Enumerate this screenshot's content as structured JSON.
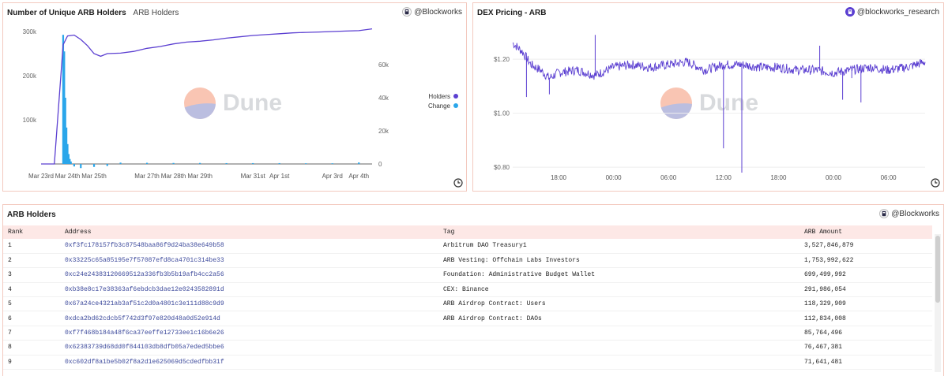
{
  "holders_panel": {
    "title": "Number of Unique ARB Holders",
    "subtitle": "ARB Holders",
    "credit": "@Blockworks",
    "left_ticks": [
      "300k",
      "200k",
      "100k"
    ],
    "right_ticks": [
      "60k",
      "40k",
      "20k",
      "0"
    ],
    "x_ticks": [
      "Mar 23rd",
      "Mar 24th",
      "Mar 25th",
      "Mar 27th",
      "Mar 28th",
      "Mar 29th",
      "Mar 31st",
      "Apr 1st",
      "Apr 3rd",
      "Apr 4th"
    ],
    "legend": [
      {
        "label": "Holders",
        "color": "#5b3fd1"
      },
      {
        "label": "Change",
        "color": "#2aa6ea"
      }
    ]
  },
  "dex_panel": {
    "title": "DEX Pricing - ARB",
    "credit": "@blockworks_research",
    "y_ticks": [
      "$1.20",
      "$1.00",
      "$0.80"
    ],
    "x_ticks": [
      "18:00",
      "00:00",
      "06:00",
      "12:00",
      "18:00",
      "00:00",
      "06:00"
    ],
    "line_color": "#5b3fd1"
  },
  "watermark": "Dune",
  "chart_data": [
    {
      "type": "line",
      "title": "Number of Unique ARB Holders",
      "series": [
        {
          "name": "Holders",
          "axis": "left",
          "x": [
            "Mar 23 00:00",
            "Mar 23 12:00",
            "Mar 23 20:00",
            "Mar 24 00:00",
            "Mar 24 06:00",
            "Mar 24 12:00",
            "Mar 24 18:00",
            "Mar 25 00:00",
            "Mar 25 06:00",
            "Mar 25 12:00",
            "Mar 26 00:00",
            "Mar 26 12:00",
            "Mar 27 00:00",
            "Mar 27 12:00",
            "Mar 28 00:00",
            "Mar 28 12:00",
            "Mar 29 00:00",
            "Mar 29 12:00",
            "Mar 30 00:00",
            "Mar 30 12:00",
            "Mar 31 00:00",
            "Mar 31 12:00",
            "Apr 1 00:00",
            "Apr 1 12:00",
            "Apr 2 00:00",
            "Apr 2 12:00",
            "Apr 3 00:00",
            "Apr 3 12:00",
            "Apr 4 00:00",
            "Apr 4 12:00"
          ],
          "values": [
            0,
            0,
            270000,
            290000,
            292000,
            282000,
            268000,
            250000,
            244000,
            250000,
            251000,
            255000,
            262000,
            266000,
            272000,
            276000,
            278000,
            281000,
            285000,
            288000,
            291000,
            293000,
            295000,
            297000,
            298000,
            299000,
            300000,
            301000,
            302000,
            306000
          ]
        },
        {
          "name": "Change",
          "axis": "right",
          "type": "bar",
          "x": [
            "Mar 23 20:00",
            "Mar 23 21:00",
            "Mar 23 22:00",
            "Mar 23 23:00",
            "Mar 24 00:00",
            "Mar 24 01:00",
            "Mar 24 02:00",
            "Mar 24 03:00",
            "Mar 24 06:00",
            "Mar 24 12:00",
            "Mar 25 00:00",
            "Mar 25 12:00",
            "Mar 26 00:00",
            "Mar 27 00:00",
            "Mar 28 00:00",
            "Mar 29 00:00",
            "Mar 30 00:00",
            "Mar 31 00:00",
            "Apr 1 00:00",
            "Apr 2 00:00",
            "Apr 3 00:00",
            "Apr 4 00:00"
          ],
          "values": [
            78000,
            68000,
            40000,
            22000,
            12000,
            6000,
            3000,
            1500,
            -1500,
            -2500,
            -1800,
            -1200,
            800,
            700,
            600,
            600,
            500,
            500,
            500,
            400,
            400,
            900
          ]
        }
      ],
      "ylim_left": [
        0,
        300000
      ],
      "ylim_right": [
        0,
        80000
      ]
    },
    {
      "type": "line",
      "title": "DEX Pricing - ARB",
      "x": [
        "Mar 23 13:00",
        "Mar 23 14:00",
        "Mar 23 15:00",
        "Mar 23 16:00",
        "Mar 23 17:00",
        "Mar 23 18:00",
        "Mar 23 20:00",
        "Mar 23 22:00",
        "Mar 24 00:00",
        "Mar 24 02:00",
        "Mar 24 04:00",
        "Mar 24 06:00",
        "Mar 24 08:00",
        "Mar 24 10:00",
        "Mar 24 12:00",
        "Mar 24 14:00",
        "Mar 24 16:00",
        "Mar 24 18:00",
        "Mar 24 20:00",
        "Mar 24 22:00",
        "Mar 25 00:00",
        "Mar 25 02:00",
        "Mar 25 04:00",
        "Mar 25 06:00",
        "Mar 25 08:00",
        "Mar 25 10:00"
      ],
      "values": [
        1.26,
        1.23,
        1.18,
        1.16,
        1.13,
        1.15,
        1.16,
        1.14,
        1.17,
        1.18,
        1.17,
        1.18,
        1.19,
        1.16,
        1.18,
        1.18,
        1.17,
        1.17,
        1.16,
        1.16,
        1.15,
        1.16,
        1.17,
        1.16,
        1.17,
        1.19
      ],
      "ylim": [
        0.78,
        1.32
      ]
    }
  ],
  "table_panel": {
    "title": "ARB Holders",
    "credit": "@Blockworks",
    "columns": [
      "Rank",
      "Address",
      "Tag",
      "ARB Amount"
    ],
    "rows": [
      [
        "1",
        "0xf3fc178157fb3c87548baa86f9d24ba38e649b58",
        "Arbitrum DAO Treasury1",
        "3,527,846,879"
      ],
      [
        "2",
        "0x33225c65a85195e7f57087efd8ca4701c314be33",
        "ARB Vesting: Offchain Labs Investors",
        "1,753,992,622"
      ],
      [
        "3",
        "0xc24e24383120669512a336fb3b5b19afb4cc2a56",
        "Foundation: Administrative Budget Wallet",
        "699,499,992"
      ],
      [
        "4",
        "0xb38e8c17e38363af6ebdcb3dae12e0243582891d",
        "CEX: Binance",
        "291,986,054"
      ],
      [
        "5",
        "0x67a24ce4321ab3af51c2d0a4801c3e111d88c9d9",
        "ARB Airdrop Contract: Users",
        "118,329,909"
      ],
      [
        "6",
        "0xdca2bd62cdcb5f742d3f97e820d48a0d52e914d",
        "ARB Airdrop Contract: DAOs",
        "112,834,008"
      ],
      [
        "7",
        "0xf7f468b184a48f6ca37eeffe12733ee1c16b6e26",
        "",
        "85,764,496"
      ],
      [
        "8",
        "0x62383739d68dd0f844103db8dfb05a7eded5bbe6",
        "",
        "76,467,381"
      ],
      [
        "9",
        "0xc602df8a1be5b02f8a2d1e625069d5cdedfbb31f",
        "",
        "71,641,481"
      ]
    ]
  }
}
